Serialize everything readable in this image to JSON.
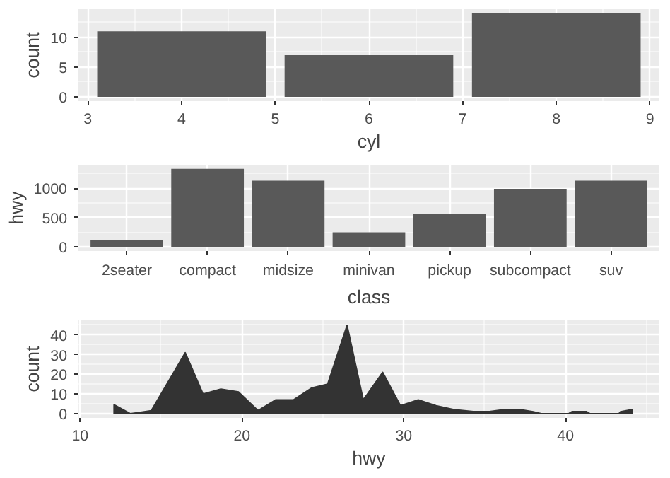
{
  "chart_data": [
    {
      "type": "bar",
      "xlabel": "cyl",
      "ylabel": "count",
      "x": [
        4,
        6,
        8
      ],
      "values": [
        11,
        7,
        14
      ],
      "color": "#595959",
      "xlim": [
        2.9,
        9.1
      ],
      "xticks": [
        3,
        4,
        5,
        6,
        7,
        8,
        9
      ],
      "ylim": [
        -0.7,
        14.7
      ],
      "yticks": [
        0,
        5,
        10
      ],
      "grid": true
    },
    {
      "type": "bar",
      "xlabel": "class",
      "ylabel": "hwy",
      "categories": [
        "2seater",
        "compact",
        "midsize",
        "minivan",
        "pickup",
        "subcompact",
        "suv"
      ],
      "values": [
        120,
        1330,
        1130,
        250,
        560,
        990,
        1130
      ],
      "color": "#595959",
      "ylim": [
        -70,
        1400
      ],
      "yticks": [
        0,
        500,
        1000
      ],
      "grid": true
    },
    {
      "type": "area",
      "xlabel": "hwy",
      "ylabel": "count",
      "x": [
        12.1,
        13.1,
        13.6,
        14.4,
        16.5,
        17.6,
        18.7,
        19.8,
        21.0,
        22.1,
        23.2,
        24.3,
        25.3,
        26.5,
        27.5,
        28.7,
        29.8,
        30.9,
        32.0,
        33.1,
        34.3,
        35.3,
        36.2,
        37.2,
        38.0,
        38.5,
        40.2,
        40.4,
        41.3,
        41.5,
        43.3,
        43.4,
        44.1
      ],
      "values": [
        4.5,
        0,
        0.5,
        1.5,
        31,
        10,
        12.5,
        11,
        1.5,
        7,
        7,
        13,
        15,
        45,
        7,
        21,
        4,
        7,
        4,
        2,
        1,
        1,
        2,
        2,
        1,
        0,
        0,
        1,
        1,
        0,
        0,
        1,
        2
      ],
      "color": "#333333",
      "xlim": [
        9.9,
        45.8
      ],
      "xticks": [
        10,
        20,
        30,
        40
      ],
      "ylim": [
        -2.2,
        47.5
      ],
      "yticks": [
        0,
        10,
        20,
        30,
        40
      ],
      "grid": true
    }
  ]
}
